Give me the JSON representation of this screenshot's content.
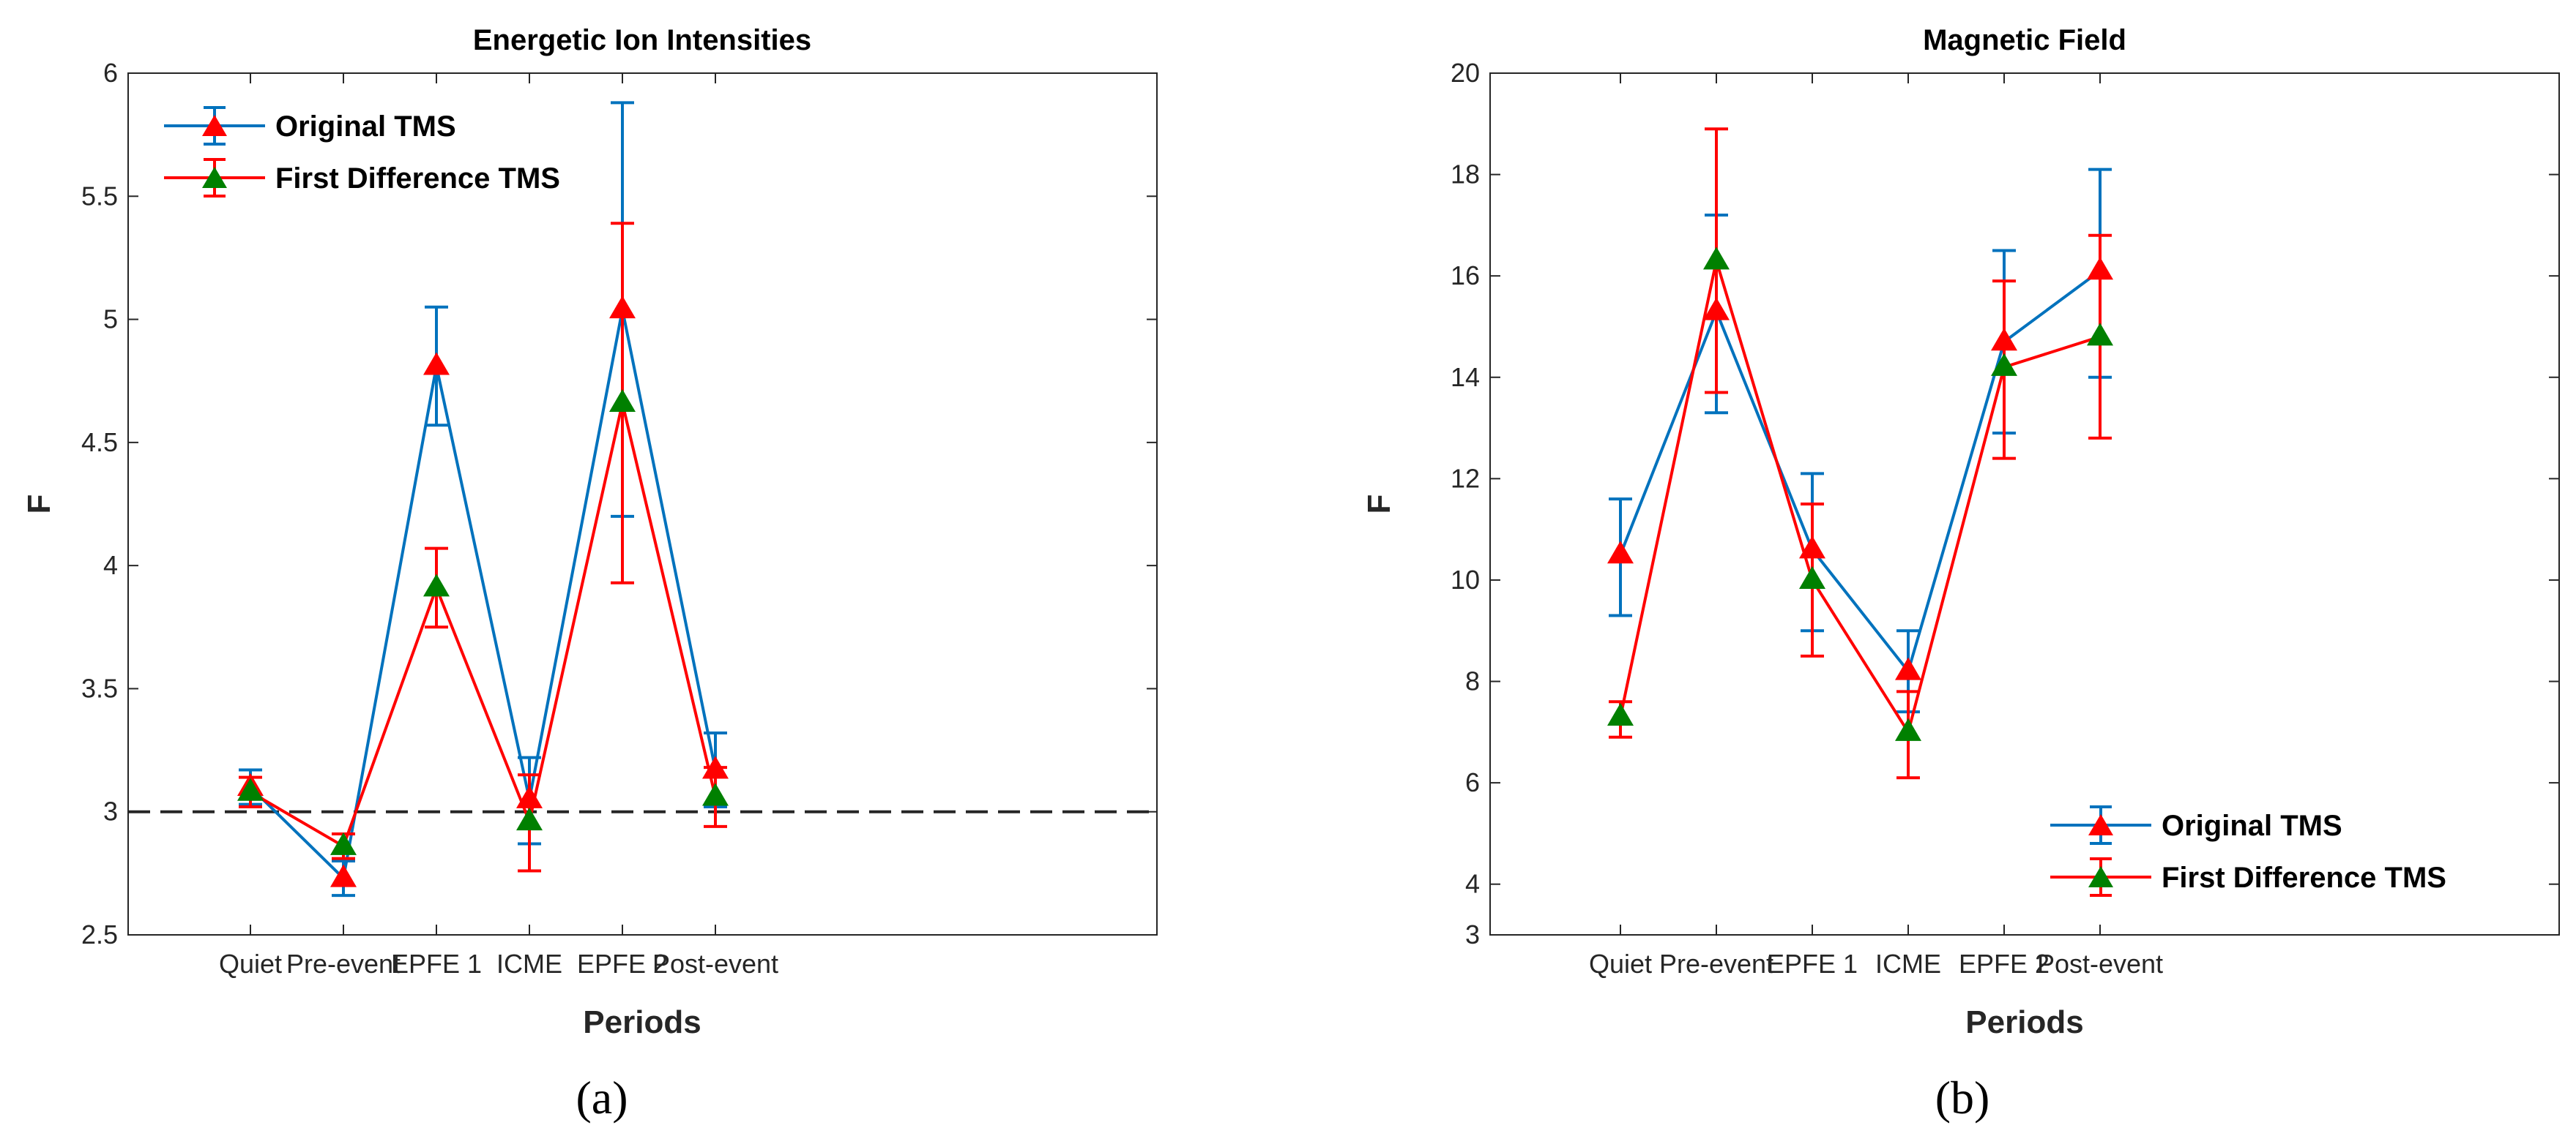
{
  "chart_data": [
    {
      "type": "line",
      "title": "Energetic Ion Intensities",
      "xlabel": "Periods",
      "ylabel": "F",
      "caption": "(a)",
      "categories": [
        "Quiet",
        "Pre-event",
        "EPFE 1",
        "ICME",
        "EPFE 2",
        "Post-event"
      ],
      "ylim": [
        2.5,
        6
      ],
      "yticks": [
        "2.5",
        "3",
        "3.5",
        "4",
        "4.5",
        "5",
        "5.5",
        "6"
      ],
      "reference_line": 3,
      "legend_position": "top-left",
      "series": [
        {
          "name": "Original TMS",
          "line_color": "#0072BD",
          "marker_color": "#FF0000",
          "values": [
            3.1,
            2.73,
            4.81,
            3.05,
            5.04,
            3.17
          ],
          "err_low": [
            3.03,
            2.66,
            4.57,
            2.87,
            4.2,
            3.02
          ],
          "err_high": [
            3.17,
            2.8,
            5.05,
            3.22,
            5.88,
            3.32
          ]
        },
        {
          "name": "First Difference TMS",
          "line_color": "#FF0000",
          "marker_color": "#008000",
          "values": [
            3.08,
            2.86,
            3.91,
            2.96,
            4.66,
            3.06
          ],
          "err_low": [
            3.02,
            2.81,
            3.75,
            2.76,
            3.93,
            2.94
          ],
          "err_high": [
            3.14,
            2.91,
            4.07,
            3.15,
            5.39,
            3.18
          ]
        }
      ]
    },
    {
      "type": "line",
      "title": "Magnetic Field",
      "xlabel": "Periods",
      "ylabel": "F",
      "caption": "(b)",
      "categories": [
        "Quiet",
        "Pre-event",
        "EPFE 1",
        "ICME",
        "EPFE 2",
        "Post-event"
      ],
      "ylim": [
        3,
        20
      ],
      "yticks": [
        "3",
        "4",
        "6",
        "8",
        "10",
        "12",
        "14",
        "16",
        "18",
        "20"
      ],
      "legend_position": "bottom-right",
      "series": [
        {
          "name": "Original TMS",
          "line_color": "#0072BD",
          "marker_color": "#FF0000",
          "values": [
            10.5,
            15.3,
            10.6,
            8.2,
            14.7,
            16.1
          ],
          "err_low": [
            9.3,
            13.3,
            9.0,
            7.4,
            12.9,
            14.0
          ],
          "err_high": [
            11.6,
            17.2,
            12.1,
            9.0,
            16.5,
            18.1
          ]
        },
        {
          "name": "First Difference TMS",
          "line_color": "#FF0000",
          "marker_color": "#008000",
          "values": [
            7.3,
            16.3,
            10.0,
            7.0,
            14.2,
            14.8
          ],
          "err_low": [
            6.9,
            13.7,
            8.5,
            6.1,
            12.4,
            12.8
          ],
          "err_high": [
            7.6,
            18.9,
            11.5,
            7.8,
            15.9,
            16.8
          ]
        }
      ]
    }
  ]
}
